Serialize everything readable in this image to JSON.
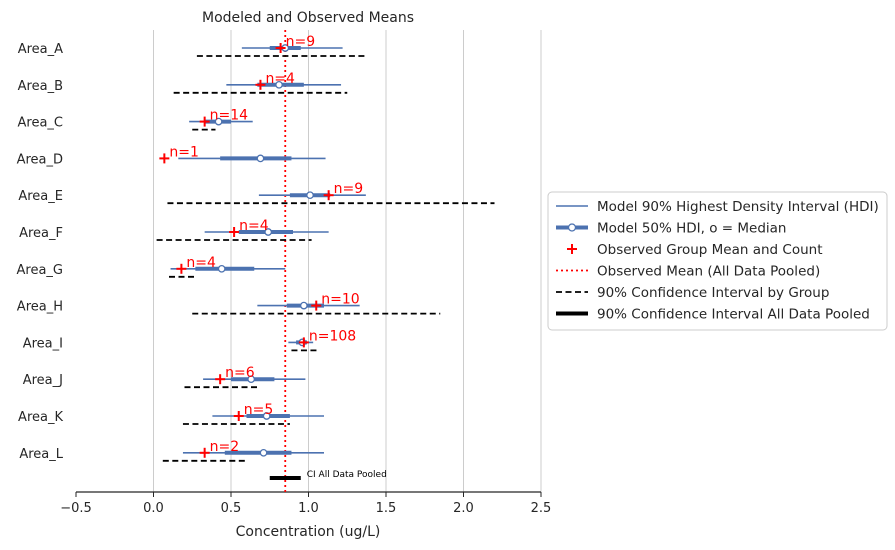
{
  "chart_data": {
    "type": "forest",
    "title": "Modeled and Observed Means",
    "xlabel": "Concentration (ug/L)",
    "ylabel": "",
    "xlim": [
      -0.5,
      2.5
    ],
    "xticks": [
      -0.5,
      0.0,
      0.5,
      1.0,
      1.5,
      2.0,
      2.5
    ],
    "xtick_labels": [
      "−0.5",
      "0.0",
      "0.5",
      "1.0",
      "1.5",
      "2.0",
      "2.5"
    ],
    "grid": "vertical",
    "legend_placement": "center-right",
    "colors": {
      "model": "#4c72b0",
      "observed": "#ff0000",
      "ci": "#000000"
    },
    "pooled_observed_mean": 0.85,
    "pooled_ci": [
      0.75,
      0.95
    ],
    "pooled_ci_label": "CI All Data Pooled",
    "legend": [
      "Model 90% Highest Density Interval (HDI)",
      "Model 50% HDI, o = Median",
      "Observed Group Mean and Count",
      "Observed Mean (All Data Pooled)",
      "90% Confidence Interval by Group",
      "90% Confidence Interval All Data Pooled"
    ],
    "groups": [
      {
        "name": "Area_A",
        "hdi90": [
          0.57,
          1.22
        ],
        "hdi50": [
          0.75,
          0.95
        ],
        "median": 0.85,
        "obs_mean": 0.82,
        "n_label": "n=9",
        "ci": [
          0.28,
          1.38
        ]
      },
      {
        "name": "Area_B",
        "hdi90": [
          0.47,
          1.21
        ],
        "hdi50": [
          0.67,
          0.97
        ],
        "median": 0.81,
        "obs_mean": 0.69,
        "n_label": "n=4",
        "ci": [
          0.13,
          1.25
        ]
      },
      {
        "name": "Area_C",
        "hdi90": [
          0.23,
          0.64
        ],
        "hdi50": [
          0.33,
          0.5
        ],
        "median": 0.42,
        "obs_mean": 0.33,
        "n_label": "n=14",
        "ci": [
          0.25,
          0.4
        ]
      },
      {
        "name": "Area_D",
        "hdi90": [
          0.16,
          1.11
        ],
        "hdi50": [
          0.43,
          0.89
        ],
        "median": 0.69,
        "obs_mean": 0.07,
        "n_label": "n=1",
        "ci": null
      },
      {
        "name": "Area_E",
        "hdi90": [
          0.68,
          1.37
        ],
        "hdi50": [
          0.88,
          1.14
        ],
        "median": 1.01,
        "obs_mean": 1.13,
        "n_label": "n=9",
        "ci": [
          0.09,
          2.2
        ]
      },
      {
        "name": "Area_F",
        "hdi90": [
          0.33,
          1.13
        ],
        "hdi50": [
          0.55,
          0.9
        ],
        "median": 0.74,
        "obs_mean": 0.52,
        "n_label": "n=4",
        "ci": [
          0.02,
          1.02
        ]
      },
      {
        "name": "Area_G",
        "hdi90": [
          0.11,
          0.85
        ],
        "hdi50": [
          0.27,
          0.65
        ],
        "median": 0.44,
        "obs_mean": 0.18,
        "n_label": "n=4",
        "ci": [
          0.1,
          0.28
        ]
      },
      {
        "name": "Area_H",
        "hdi90": [
          0.67,
          1.33
        ],
        "hdi50": [
          0.86,
          1.1
        ],
        "median": 0.97,
        "obs_mean": 1.05,
        "n_label": "n=10",
        "ci": [
          0.25,
          1.85
        ]
      },
      {
        "name": "Area_I",
        "hdi90": [
          0.87,
          1.03
        ],
        "hdi50": [
          0.92,
          0.99
        ],
        "median": 0.96,
        "obs_mean": 0.97,
        "n_label": "n=108",
        "ci": [
          0.89,
          1.06
        ]
      },
      {
        "name": "Area_J",
        "hdi90": [
          0.32,
          0.98
        ],
        "hdi50": [
          0.5,
          0.78
        ],
        "median": 0.63,
        "obs_mean": 0.43,
        "n_label": "n=6",
        "ci": [
          0.2,
          0.67
        ]
      },
      {
        "name": "Area_K",
        "hdi90": [
          0.38,
          1.1
        ],
        "hdi50": [
          0.6,
          0.88
        ],
        "median": 0.73,
        "obs_mean": 0.55,
        "n_label": "n=5",
        "ci": [
          0.19,
          0.88
        ]
      },
      {
        "name": "Area_L",
        "hdi90": [
          0.19,
          1.1
        ],
        "hdi50": [
          0.46,
          0.89
        ],
        "median": 0.71,
        "obs_mean": 0.33,
        "n_label": "n=2",
        "ci": [
          0.06,
          0.6
        ]
      }
    ]
  }
}
